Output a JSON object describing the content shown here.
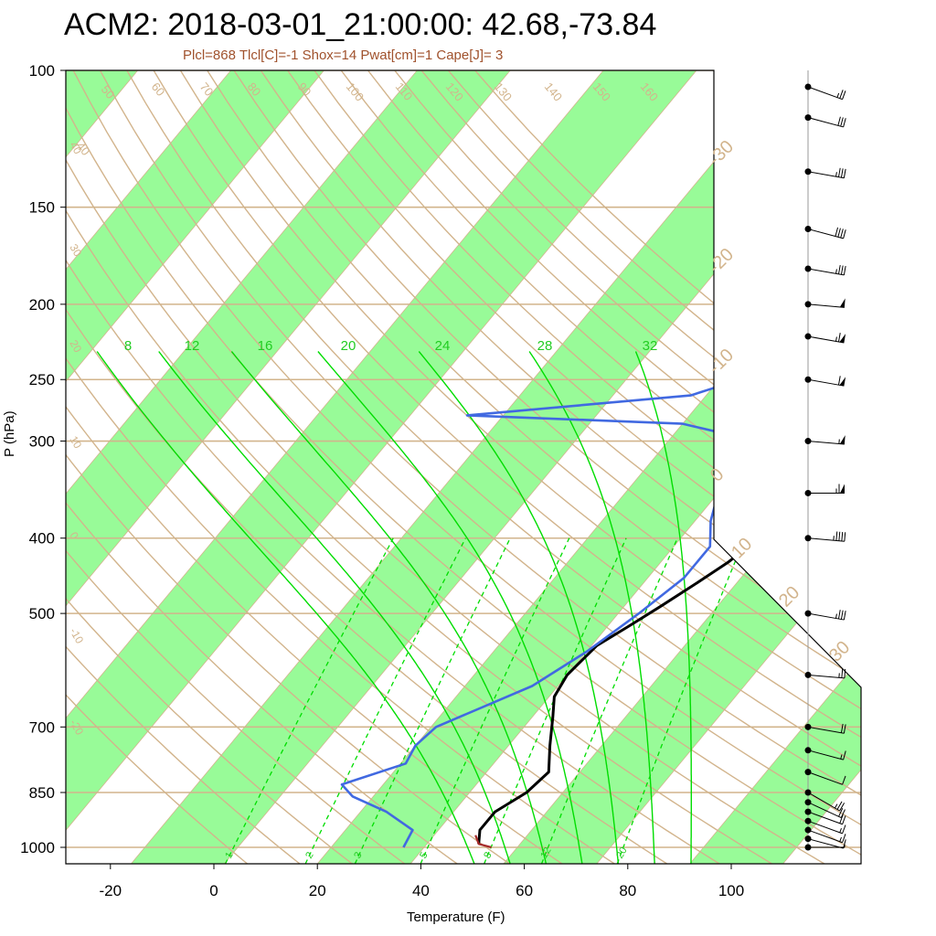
{
  "chart_data": {
    "type": "skew-t",
    "title": "ACM2: 2018-03-01_21:00:00: 42.68,-73.84",
    "subtitle": "Plcl=868 Tlcl[C]=-1 Shox=14 Pwat[cm]=1 Cape[J]= 3",
    "xlabel": "Temperature (F)",
    "ylabel": "P (hPa)",
    "xlim": [
      -28,
      97
    ],
    "ylim": [
      1050,
      100
    ],
    "y_scale": "log",
    "x_ticks": [
      "-20",
      "0",
      "20",
      "40",
      "60",
      "80",
      "100"
    ],
    "y_ticks": [
      "100",
      "150",
      "200",
      "250",
      "300",
      "400",
      "500",
      "700",
      "850",
      "1000"
    ],
    "pressure_levels_drawn": [
      100,
      150,
      200,
      250,
      300,
      400,
      500,
      700,
      850,
      1000
    ],
    "dry_adiabat_labels": [
      "40",
      "50",
      "60",
      "70",
      "80",
      "90",
      "100",
      "110",
      "120",
      "130",
      "140",
      "150",
      "160"
    ],
    "left_isotherm_labels": [
      "-20",
      "-10",
      "0",
      "10",
      "20",
      "30",
      "40"
    ],
    "right_isotherm_labels": [
      "30",
      "20",
      "10",
      "0",
      "-10",
      "-20",
      "-30"
    ],
    "moist_adiabat_labels": [
      "8",
      "12",
      "16",
      "20",
      "24",
      "28",
      "32"
    ],
    "mixing_ratio_labels": [
      "1",
      "2",
      "3",
      "5",
      "8",
      "12",
      "20"
    ],
    "series": [
      {
        "name": "Temperature",
        "color": "#000000",
        "points": [
          [
            48,
            990
          ],
          [
            46,
            950
          ],
          [
            46,
            900
          ],
          [
            49,
            850
          ],
          [
            50,
            800
          ],
          [
            46,
            740
          ],
          [
            42,
            680
          ],
          [
            39,
            640
          ],
          [
            38,
            600
          ],
          [
            39,
            550
          ],
          [
            42,
            520
          ],
          [
            45,
            490
          ],
          [
            48,
            460
          ],
          [
            51,
            430
          ],
          [
            53,
            400
          ],
          [
            58,
            360
          ],
          [
            63,
            320
          ],
          [
            68,
            300
          ],
          [
            73,
            285
          ],
          [
            77,
            272
          ],
          [
            82,
            255
          ],
          [
            90,
            240
          ],
          [
            97,
            222
          ],
          [
            106,
            200
          ],
          [
            118,
            185
          ],
          [
            130,
            165
          ],
          [
            143,
            148
          ],
          [
            157,
            130
          ],
          [
            170,
            117
          ],
          [
            185,
            103
          ],
          [
            190,
            100
          ]
        ]
      },
      {
        "name": "Dewpoint",
        "color": "#4169e1",
        "points": [
          [
            34,
            1000
          ],
          [
            33,
            950
          ],
          [
            25,
            900
          ],
          [
            16,
            860
          ],
          [
            12,
            830
          ],
          [
            21,
            780
          ],
          [
            20,
            740
          ],
          [
            21,
            700
          ],
          [
            33,
            620
          ],
          [
            38,
            560
          ],
          [
            42,
            500
          ],
          [
            45,
            450
          ],
          [
            45,
            410
          ],
          [
            41,
            380
          ],
          [
            38,
            350
          ],
          [
            38,
            330
          ],
          [
            37,
            300
          ],
          [
            20,
            285
          ],
          [
            -23,
            278
          ],
          [
            17,
            262
          ],
          [
            27,
            245
          ],
          [
            36,
            225
          ],
          [
            48,
            200
          ],
          [
            52,
            185
          ],
          [
            54,
            172
          ],
          [
            54,
            160
          ],
          [
            68,
            140
          ],
          [
            85,
            120
          ],
          [
            105,
            100
          ]
        ]
      },
      {
        "name": "Parcel",
        "color": "#a52a2a",
        "points": [
          [
            51,
            1000
          ],
          [
            48,
            990
          ],
          [
            46,
            965
          ]
        ]
      }
    ],
    "wind_barbs": [
      {
        "p": 1000,
        "speed_kt": 5,
        "dir_deg": 270
      },
      {
        "p": 975,
        "speed_kt": 10,
        "dir_deg": 285
      },
      {
        "p": 950,
        "speed_kt": 15,
        "dir_deg": 290
      },
      {
        "p": 925,
        "speed_kt": 15,
        "dir_deg": 290
      },
      {
        "p": 900,
        "speed_kt": 20,
        "dir_deg": 290
      },
      {
        "p": 875,
        "speed_kt": 20,
        "dir_deg": 295
      },
      {
        "p": 850,
        "speed_kt": 25,
        "dir_deg": 300
      },
      {
        "p": 800,
        "speed_kt": 10,
        "dir_deg": 290
      },
      {
        "p": 750,
        "speed_kt": 15,
        "dir_deg": 285
      },
      {
        "p": 700,
        "speed_kt": 20,
        "dir_deg": 280
      },
      {
        "p": 600,
        "speed_kt": 25,
        "dir_deg": 275
      },
      {
        "p": 500,
        "speed_kt": 35,
        "dir_deg": 280
      },
      {
        "p": 400,
        "speed_kt": 45,
        "dir_deg": 275
      },
      {
        "p": 350,
        "speed_kt": 65,
        "dir_deg": 270
      },
      {
        "p": 300,
        "speed_kt": 55,
        "dir_deg": 275
      },
      {
        "p": 250,
        "speed_kt": 60,
        "dir_deg": 280
      },
      {
        "p": 220,
        "speed_kt": 65,
        "dir_deg": 280
      },
      {
        "p": 200,
        "speed_kt": 50,
        "dir_deg": 275
      },
      {
        "p": 180,
        "speed_kt": 35,
        "dir_deg": 280
      },
      {
        "p": 160,
        "speed_kt": 40,
        "dir_deg": 285
      },
      {
        "p": 135,
        "speed_kt": 35,
        "dir_deg": 280
      },
      {
        "p": 115,
        "speed_kt": 30,
        "dir_deg": 285
      },
      {
        "p": 105,
        "speed_kt": 25,
        "dir_deg": 290
      }
    ],
    "colors": {
      "isobar": "#d2b48c",
      "isotherm_band": "#98fb98",
      "adiabat": "#d2b48c",
      "moist_adiabat": "#00dd00",
      "mixing_ratio": "#00dd00",
      "temperature": "#000000",
      "dewpoint": "#4169e1",
      "label": "#d2b48c"
    }
  }
}
